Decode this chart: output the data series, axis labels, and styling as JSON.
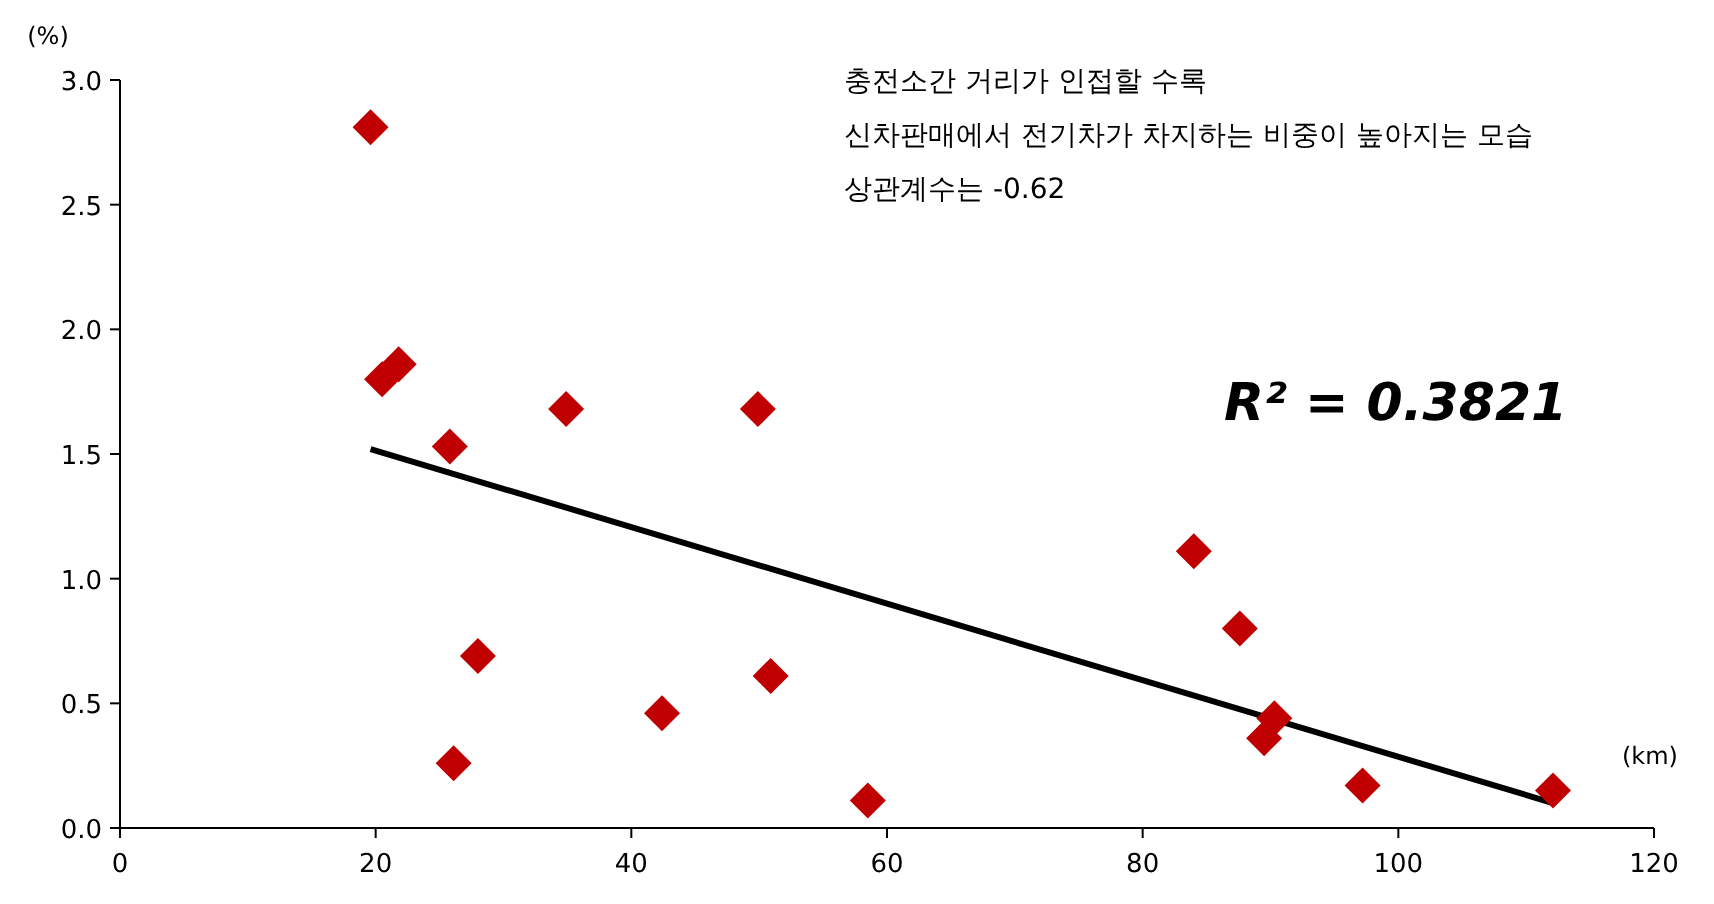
{
  "chart_data": {
    "type": "scatter",
    "xlabel": "(km)",
    "ylabel": "(%)",
    "xlim": [
      0,
      120
    ],
    "xticks": [
      0,
      20,
      40,
      60,
      80,
      100,
      120
    ],
    "ylim": [
      0,
      3
    ],
    "yticks": [
      {
        "value": 0,
        "label": "0.0"
      },
      {
        "value": 0.5,
        "label": "0.5"
      },
      {
        "value": 1,
        "label": "1.0"
      },
      {
        "value": 1.5,
        "label": "1.5"
      },
      {
        "value": 2,
        "label": "2.0"
      },
      {
        "value": 2.5,
        "label": "2.5"
      },
      {
        "value": 3,
        "label": "3.0"
      }
    ],
    "series": [
      {
        "marker": "diamond",
        "color": "#c00000",
        "x": [
          19.6,
          20.5,
          21.8,
          25.8,
          34.9,
          49.9,
          28.0,
          26.1,
          42.4,
          50.9,
          58.5,
          84.0,
          87.6,
          90.3,
          89.5,
          97.2,
          112.1
        ],
        "values": [
          2.81,
          1.8,
          1.86,
          1.53,
          1.68,
          1.68,
          0.69,
          0.26,
          0.46,
          0.61,
          0.11,
          1.11,
          0.8,
          0.44,
          0.36,
          0.17,
          0.15
        ]
      },
      {
        "type": "line",
        "color": "#000000",
        "x": [
          19.6,
          112.1
        ],
        "values": [
          1.52,
          0.1
        ]
      }
    ],
    "annotations": [
      "충전소간 거리가 인접할 수록",
      "신차판매에서 전기차가 차지하는 비중이 높아지는 모습",
      "상관계수는 -0.62",
      "R² = 0.3821"
    ]
  }
}
